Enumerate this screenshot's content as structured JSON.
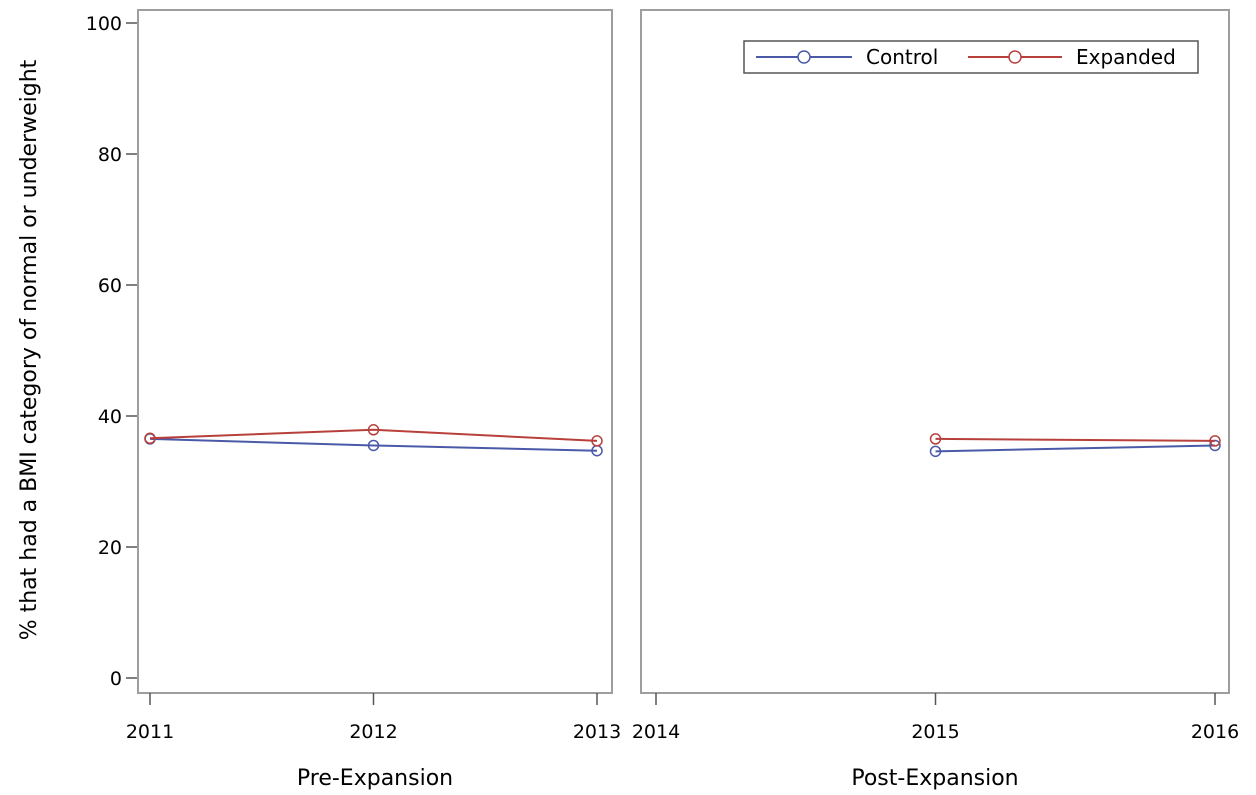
{
  "chart_data": {
    "type": "line",
    "ylabel": "% that had a BMI category of normal or underweight",
    "ylim": [
      0,
      100
    ],
    "yticks": [
      0,
      20,
      40,
      60,
      80,
      100
    ],
    "grid": false,
    "legend_position": "top-right",
    "panels": [
      {
        "xlabel": "Pre-Expansion",
        "x": [
          2011,
          2012,
          2013
        ],
        "xticks": [
          "2011",
          "2012",
          "2013"
        ],
        "series": [
          {
            "name": "Control",
            "color": "#4a5aa8",
            "values": [
              36.5,
              35.5,
              34.7
            ]
          },
          {
            "name": "Expanded",
            "color": "#b8403c",
            "values": [
              36.6,
              37.9,
              36.2
            ]
          }
        ]
      },
      {
        "xlabel": "Post-Expansion",
        "x": [
          2014,
          2015,
          2016
        ],
        "xticks": [
          "2014",
          "2015",
          "2016"
        ],
        "series": [
          {
            "name": "Control",
            "color": "#4a5aa8",
            "values": [
              null,
              34.6,
              35.5
            ]
          },
          {
            "name": "Expanded",
            "color": "#b8403c",
            "values": [
              null,
              36.5,
              36.2
            ]
          }
        ]
      }
    ],
    "legend": [
      {
        "label": "Control",
        "color": "#4a5aa8"
      },
      {
        "label": "Expanded",
        "color": "#b8403c"
      }
    ]
  }
}
